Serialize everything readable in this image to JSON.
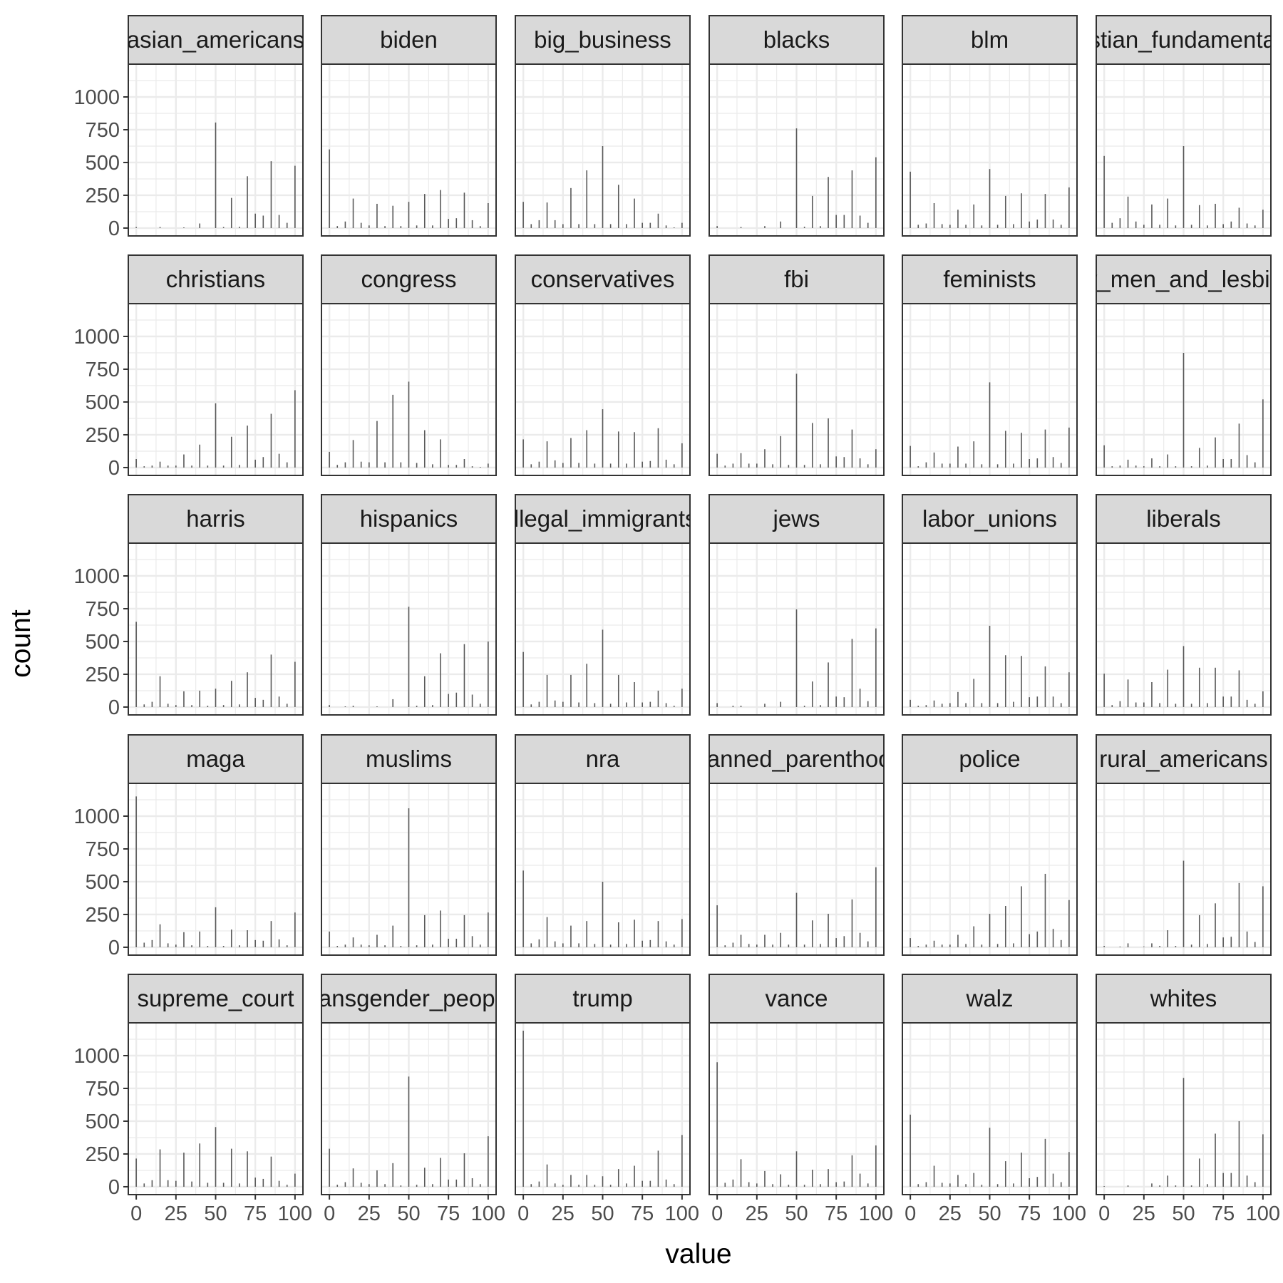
{
  "chart_data": {
    "type": "bar",
    "xlabel": "value",
    "ylabel": "count",
    "x_ticks": [
      0,
      25,
      50,
      75,
      100
    ],
    "y_ticks": [
      0,
      250,
      500,
      750,
      1000
    ],
    "xlim": [
      -5,
      105
    ],
    "ylim": [
      -60,
      1250
    ],
    "grid": true,
    "colors": {
      "bar": "#595959",
      "panel_border": "#333333",
      "strip_fill": "#d9d9d9",
      "grid": "#ebebeb",
      "text": "#4d4d4d"
    },
    "x_values": [
      0,
      5,
      10,
      15,
      20,
      25,
      30,
      35,
      40,
      45,
      50,
      55,
      60,
      65,
      70,
      75,
      80,
      85,
      90,
      95,
      100
    ],
    "facets": [
      {
        "name": "asian_americans",
        "strip_label": "asian_americans",
        "values": [
          8,
          0,
          0,
          8,
          0,
          0,
          5,
          0,
          35,
          0,
          805,
          8,
          230,
          10,
          395,
          110,
          95,
          510,
          100,
          40,
          475
        ]
      },
      {
        "name": "biden",
        "strip_label": "biden",
        "values": [
          600,
          15,
          50,
          225,
          40,
          20,
          185,
          15,
          170,
          15,
          200,
          20,
          260,
          20,
          290,
          70,
          75,
          270,
          60,
          15,
          190
        ]
      },
      {
        "name": "big_business",
        "strip_label": "big_business",
        "values": [
          200,
          30,
          60,
          195,
          60,
          30,
          305,
          30,
          440,
          30,
          625,
          30,
          330,
          30,
          225,
          40,
          40,
          110,
          20,
          5,
          40
        ]
      },
      {
        "name": "blacks",
        "strip_label": "blacks",
        "values": [
          15,
          0,
          0,
          8,
          0,
          0,
          15,
          0,
          50,
          0,
          760,
          10,
          245,
          15,
          390,
          100,
          100,
          440,
          95,
          40,
          540
        ]
      },
      {
        "name": "blm",
        "strip_label": "blm",
        "values": [
          430,
          25,
          35,
          190,
          30,
          25,
          140,
          25,
          180,
          20,
          450,
          25,
          245,
          30,
          265,
          50,
          65,
          260,
          65,
          25,
          310
        ]
      },
      {
        "name": "christian_fundamentalists",
        "strip_label": "christian_fundamentalists",
        "values": [
          550,
          40,
          75,
          240,
          50,
          25,
          180,
          25,
          225,
          20,
          625,
          25,
          175,
          20,
          185,
          30,
          50,
          155,
          35,
          20,
          140
        ]
      },
      {
        "name": "christians",
        "strip_label": "christians",
        "values": [
          65,
          10,
          15,
          45,
          15,
          15,
          100,
          15,
          175,
          15,
          490,
          15,
          235,
          20,
          320,
          60,
          80,
          410,
          105,
          40,
          590
        ]
      },
      {
        "name": "congress",
        "strip_label": "congress",
        "values": [
          120,
          20,
          40,
          210,
          45,
          40,
          355,
          40,
          555,
          40,
          655,
          35,
          285,
          25,
          215,
          20,
          20,
          65,
          10,
          5,
          30
        ]
      },
      {
        "name": "conservatives",
        "strip_label": "conservatives",
        "values": [
          215,
          25,
          45,
          200,
          55,
          35,
          225,
          35,
          285,
          30,
          445,
          30,
          275,
          30,
          270,
          45,
          50,
          300,
          60,
          25,
          185
        ]
      },
      {
        "name": "fbi",
        "strip_label": "fbi",
        "values": [
          105,
          15,
          30,
          110,
          30,
          30,
          140,
          25,
          240,
          20,
          715,
          20,
          340,
          25,
          375,
          85,
          80,
          290,
          70,
          25,
          140
        ]
      },
      {
        "name": "feminists",
        "strip_label": "feminists",
        "values": [
          165,
          10,
          40,
          115,
          30,
          30,
          160,
          30,
          200,
          25,
          650,
          25,
          280,
          30,
          265,
          65,
          70,
          290,
          80,
          35,
          305
        ]
      },
      {
        "name": "gay_men_and_lesbians",
        "strip_label": "gay_men_and_lesbians",
        "values": [
          170,
          10,
          15,
          60,
          15,
          10,
          70,
          10,
          100,
          10,
          875,
          10,
          150,
          15,
          230,
          65,
          65,
          335,
          95,
          40,
          520
        ]
      },
      {
        "name": "harris",
        "strip_label": "harris",
        "values": [
          650,
          20,
          40,
          235,
          25,
          15,
          120,
          15,
          125,
          10,
          140,
          15,
          200,
          20,
          265,
          70,
          55,
          400,
          80,
          25,
          345
        ]
      },
      {
        "name": "hispanics",
        "strip_label": "hispanics",
        "values": [
          15,
          0,
          5,
          10,
          0,
          0,
          5,
          0,
          60,
          0,
          765,
          10,
          235,
          15,
          410,
          100,
          110,
          480,
          95,
          25,
          500
        ]
      },
      {
        "name": "illegal_immigrants",
        "strip_label": "illegal_immigrants",
        "values": [
          420,
          20,
          40,
          245,
          50,
          40,
          245,
          35,
          330,
          30,
          590,
          25,
          245,
          35,
          190,
          35,
          40,
          125,
          30,
          10,
          140
        ]
      },
      {
        "name": "jews",
        "strip_label": "jews",
        "values": [
          30,
          0,
          10,
          10,
          0,
          0,
          25,
          0,
          40,
          0,
          745,
          10,
          195,
          15,
          340,
          80,
          75,
          520,
          140,
          45,
          600
        ]
      },
      {
        "name": "labor_unions",
        "strip_label": "labor_unions",
        "values": [
          55,
          10,
          15,
          50,
          25,
          30,
          115,
          30,
          215,
          30,
          620,
          30,
          395,
          40,
          390,
          75,
          80,
          310,
          80,
          30,
          265
        ]
      },
      {
        "name": "liberals",
        "strip_label": "liberals",
        "values": [
          255,
          15,
          45,
          210,
          35,
          35,
          190,
          30,
          285,
          25,
          465,
          25,
          300,
          30,
          300,
          80,
          80,
          280,
          55,
          25,
          120
        ]
      },
      {
        "name": "maga",
        "strip_label": "maga",
        "values": [
          1150,
          35,
          55,
          175,
          30,
          20,
          115,
          15,
          120,
          10,
          305,
          10,
          135,
          15,
          130,
          55,
          50,
          200,
          60,
          15,
          265
        ]
      },
      {
        "name": "muslims",
        "strip_label": "muslims",
        "values": [
          120,
          10,
          20,
          75,
          20,
          15,
          95,
          15,
          165,
          10,
          1060,
          15,
          245,
          20,
          280,
          65,
          65,
          245,
          85,
          20,
          265
        ]
      },
      {
        "name": "nra",
        "strip_label": "nra",
        "values": [
          585,
          30,
          60,
          230,
          45,
          30,
          165,
          30,
          200,
          25,
          500,
          20,
          190,
          25,
          210,
          50,
          55,
          200,
          45,
          20,
          215
        ]
      },
      {
        "name": "planned_parenthood",
        "strip_label": "planned_parenthood",
        "values": [
          320,
          15,
          35,
          95,
          25,
          20,
          95,
          20,
          110,
          20,
          415,
          20,
          205,
          25,
          255,
          70,
          85,
          365,
          110,
          45,
          610
        ]
      },
      {
        "name": "police",
        "strip_label": "police",
        "values": [
          70,
          10,
          20,
          50,
          20,
          20,
          95,
          25,
          160,
          20,
          255,
          25,
          315,
          30,
          465,
          100,
          120,
          560,
          140,
          55,
          360
        ]
      },
      {
        "name": "rural_americans",
        "strip_label": "rural_americans",
        "values": [
          10,
          0,
          5,
          30,
          0,
          5,
          30,
          10,
          130,
          10,
          660,
          20,
          245,
          25,
          335,
          75,
          80,
          490,
          120,
          40,
          465
        ]
      },
      {
        "name": "supreme_court",
        "strip_label": "supreme_court",
        "values": [
          215,
          25,
          50,
          285,
          50,
          45,
          260,
          40,
          330,
          30,
          455,
          30,
          290,
          25,
          270,
          70,
          60,
          230,
          45,
          15,
          100
        ]
      },
      {
        "name": "transgender_people",
        "strip_label": "transgender_people",
        "values": [
          290,
          15,
          35,
          140,
          30,
          20,
          125,
          20,
          180,
          10,
          840,
          15,
          145,
          20,
          220,
          55,
          55,
          255,
          65,
          20,
          385
        ]
      },
      {
        "name": "trump",
        "strip_label": "trump",
        "values": [
          1190,
          20,
          40,
          170,
          25,
          15,
          90,
          15,
          90,
          15,
          80,
          15,
          135,
          25,
          160,
          45,
          45,
          275,
          55,
          20,
          395
        ]
      },
      {
        "name": "vance",
        "strip_label": "vance",
        "values": [
          950,
          30,
          55,
          210,
          35,
          25,
          120,
          20,
          95,
          15,
          270,
          15,
          130,
          20,
          135,
          35,
          40,
          240,
          100,
          25,
          315
        ]
      },
      {
        "name": "walz",
        "strip_label": "walz",
        "values": [
          550,
          20,
          35,
          160,
          30,
          25,
          90,
          20,
          105,
          15,
          450,
          20,
          195,
          25,
          260,
          65,
          75,
          365,
          100,
          35,
          265
        ]
      },
      {
        "name": "whites",
        "strip_label": "whites",
        "values": [
          5,
          0,
          0,
          10,
          0,
          0,
          25,
          10,
          85,
          10,
          830,
          10,
          215,
          20,
          405,
          105,
          105,
          500,
          85,
          35,
          400
        ]
      }
    ]
  }
}
